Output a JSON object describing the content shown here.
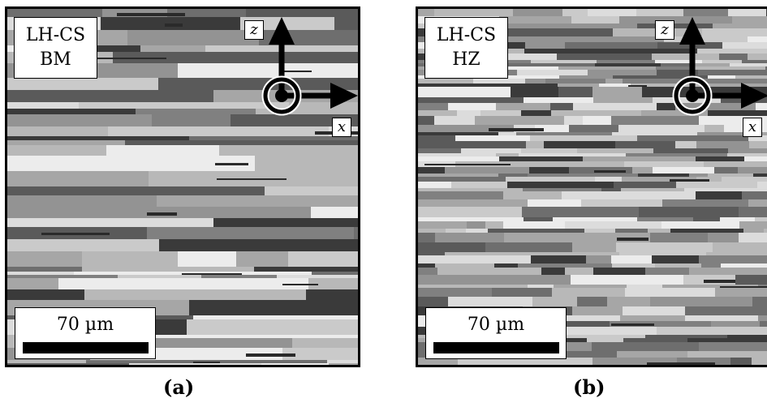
{
  "panels": [
    {
      "id": "a",
      "sample": "LH-CS",
      "zone": "BM",
      "scale": "70 µm",
      "caption": "(a)"
    },
    {
      "id": "b",
      "sample": "LH-CS",
      "zone": "HZ",
      "scale": "70 µm",
      "caption": "(b)"
    }
  ],
  "axes": {
    "vertical": "z",
    "horizontal": "x"
  }
}
